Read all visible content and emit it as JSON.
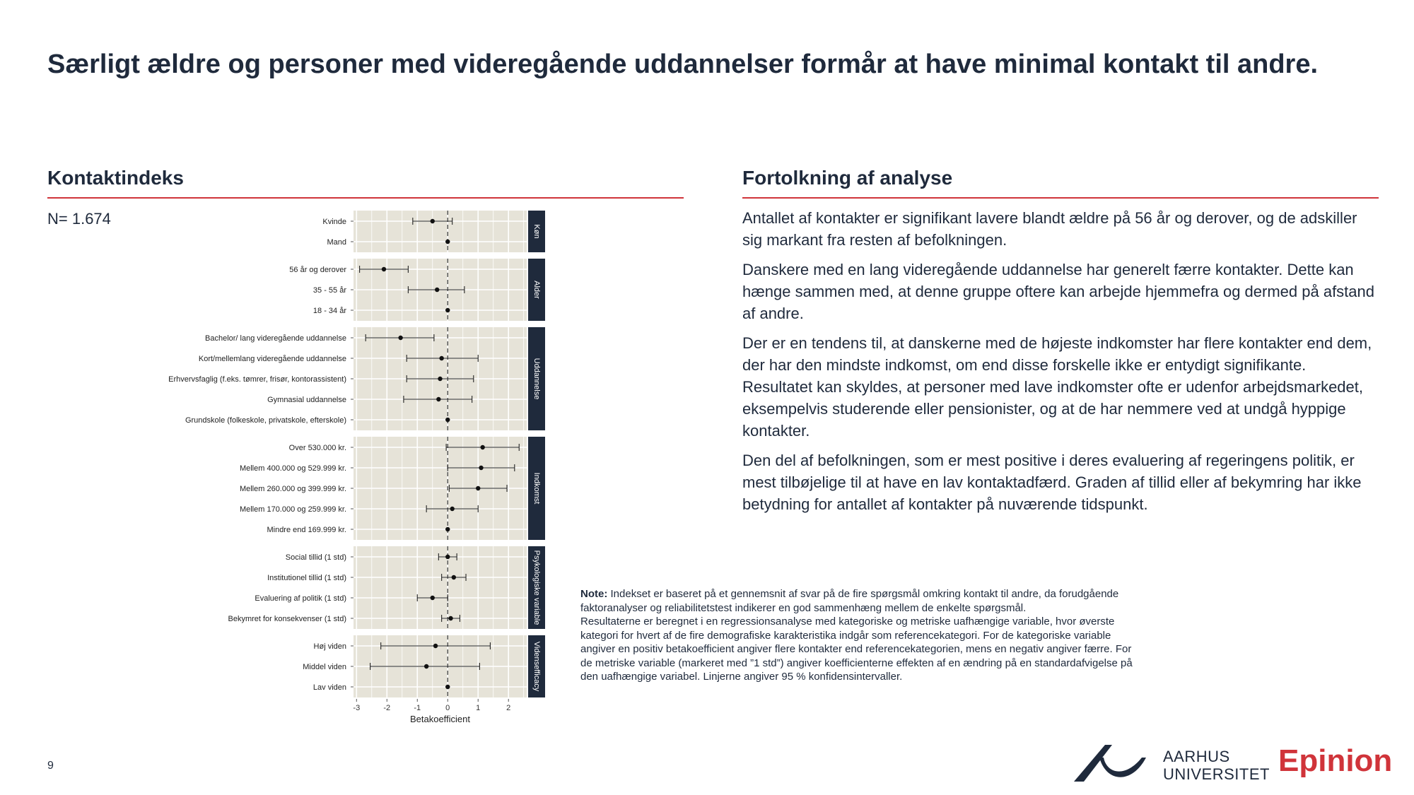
{
  "title": "Særligt ældre og personer med videregående uddannelser formår at have minimal kontakt til andre.",
  "left_heading": "Kontaktindeks",
  "right_heading": "Fortolkning af analyse",
  "n_label": "N= 1.674",
  "colors": {
    "accent_red": "#d0343a",
    "navy": "#1f2a3c",
    "panel_bg": "#e6e3d8",
    "facet_strip": "#1f2a3c"
  },
  "chart_data": {
    "type": "forest",
    "xlabel": "Betakoefficient",
    "xlim": [
      -3.1,
      2.6
    ],
    "xticks": [
      -3,
      -2,
      -1,
      0,
      1,
      2
    ],
    "grid": true,
    "reference_line": 0,
    "panels": [
      {
        "name": "Køn",
        "rows": [
          {
            "label": "Kvinde",
            "est": -0.5,
            "lo": -1.15,
            "hi": 0.15
          },
          {
            "label": "Mand",
            "est": 0,
            "lo": 0,
            "hi": 0
          }
        ]
      },
      {
        "name": "Alder",
        "rows": [
          {
            "label": "56 år og derover",
            "est": -2.1,
            "lo": -2.9,
            "hi": -1.3
          },
          {
            "label": "35 - 55 år",
            "est": -0.35,
            "lo": -1.3,
            "hi": 0.55
          },
          {
            "label": "18 - 34 år",
            "est": 0,
            "lo": 0,
            "hi": 0
          }
        ]
      },
      {
        "name": "Uddannelse",
        "rows": [
          {
            "label": "Bachelor/ lang videregående uddannelse",
            "est": -1.55,
            "lo": -2.7,
            "hi": -0.45
          },
          {
            "label": "Kort/mellemlang videregående uddannelse",
            "est": -0.2,
            "lo": -1.35,
            "hi": 1.0
          },
          {
            "label": "Erhvervsfaglig (f.eks. tømrer, frisør, kontorassistent)",
            "est": -0.25,
            "lo": -1.35,
            "hi": 0.85
          },
          {
            "label": "Gymnasial uddannelse",
            "est": -0.3,
            "lo": -1.45,
            "hi": 0.8
          },
          {
            "label": "Grundskole (folkeskole, privatskole, efterskole)",
            "est": 0,
            "lo": 0,
            "hi": 0
          }
        ]
      },
      {
        "name": "Indkomst",
        "rows": [
          {
            "label": "Over 530.000 kr.",
            "est": 1.15,
            "lo": -0.05,
            "hi": 2.35
          },
          {
            "label": "Mellem 400.000 og 529.999 kr.",
            "est": 1.1,
            "lo": 0.0,
            "hi": 2.2
          },
          {
            "label": "Mellem 260.000 og 399.999 kr.",
            "est": 1.0,
            "lo": 0.05,
            "hi": 1.95
          },
          {
            "label": "Mellem 170.000 og 259.999 kr.",
            "est": 0.15,
            "lo": -0.7,
            "hi": 1.0
          },
          {
            "label": "Mindre end 169.999 kr.",
            "est": 0,
            "lo": 0,
            "hi": 0
          }
        ]
      },
      {
        "name": "Psykologiske variable",
        "rows": [
          {
            "label": "Social tillid (1 std)",
            "est": 0.0,
            "lo": -0.3,
            "hi": 0.3
          },
          {
            "label": "Institutionel tillid (1 std)",
            "est": 0.2,
            "lo": -0.2,
            "hi": 0.6
          },
          {
            "label": "Evaluering af politik (1 std)",
            "est": -0.5,
            "lo": -1.0,
            "hi": 0.0
          },
          {
            "label": "Bekymret for konsekvenser (1 std)",
            "est": 0.1,
            "lo": -0.2,
            "hi": 0.4
          }
        ]
      },
      {
        "name": "Vidensefficacy",
        "rows": [
          {
            "label": "Høj viden",
            "est": -0.4,
            "lo": -2.2,
            "hi": 1.4
          },
          {
            "label": "Middel viden",
            "est": -0.7,
            "lo": -2.55,
            "hi": 1.05
          },
          {
            "label": "Lav viden",
            "est": 0,
            "lo": 0,
            "hi": 0
          }
        ]
      }
    ]
  },
  "interpretation": [
    "Antallet af kontakter er signifikant lavere blandt ældre på 56 år og derover, og de adskiller sig markant fra resten af befolkningen.",
    "Danskere med en lang videregående uddannelse har generelt færre kontakter. Dette kan hænge sammen med, at denne gruppe oftere kan arbejde hjemmefra og dermed på afstand af andre.",
    "Der er en tendens til, at danskerne med de højeste indkomster har flere kontakter end dem, der har den mindste indkomst, om end disse forskelle ikke er entydigt signifikante. Resultatet kan skyldes, at personer med lave indkomster ofte er udenfor arbejdsmarkedet, eksempelvis studerende eller pensionister, og at de har nemmere ved at undgå hyppige kontakter.",
    "Den del af befolkningen, som er mest positive i deres evaluering af regeringens politik, er mest tilbøjelige til at have en lav kontaktadfærd. Graden af tillid eller af bekymring har ikke betydning for antallet af kontakter på nuværende tidspunkt."
  ],
  "note": {
    "label": "Note:",
    "line1": "Indekset er baseret på et gennemsnit af svar på de fire spørgsmål omkring kontakt til andre, da forudgående faktoranalyser og reliabilitetstest indikerer en god sammenhæng mellem de enkelte spørgsmål.",
    "line2": "Resultaterne er beregnet i en regressionsanalyse med kategoriske og metriske uafhængige variable, hvor øverste kategori for hvert af de fire demografiske karakteristika indgår som referencekategori. For de kategoriske variable angiver en positiv betakoefficient angiver flere kontakter end referencekategorien, mens en negativ angiver færre. For de metriske variable (markeret med ”1 std”) angiver koefficienterne effekten af en ændring på en standardafvigelse på den uafhængige variabel. Linjerne angiver 95 % konfidensintervaller."
  },
  "page_number": "9",
  "logo": {
    "au_line1": "AARHUS",
    "au_line2": "UNIVERSITET",
    "epinion": "Epinion"
  }
}
